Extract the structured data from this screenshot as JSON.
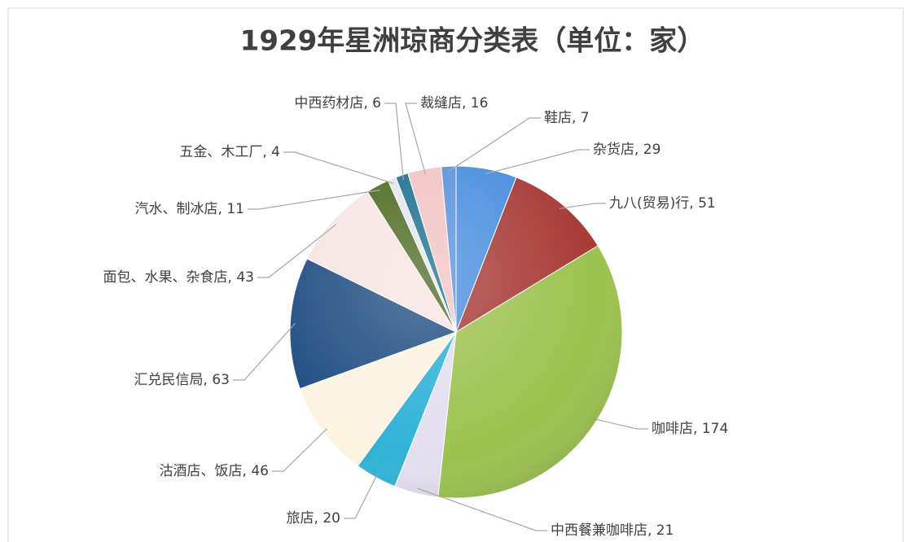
{
  "chart_data": {
    "type": "pie",
    "title": "1929年星洲琼商分类表（单位：家）",
    "categories": [
      "杂货店",
      "九八(贸易)行",
      "咖啡店",
      "中西餐兼咖啡店",
      "旅店",
      "沽酒店、饭店",
      "汇兑民信局",
      "面包、水果、杂食店",
      "汽水、制冰店",
      "五金、木工厂",
      "中西药材店",
      "裁缝店",
      "鞋店"
    ],
    "values": [
      29,
      51,
      174,
      21,
      20,
      46,
      63,
      43,
      11,
      4,
      6,
      16,
      7
    ],
    "value_labels": [
      "杂货店, 29",
      "九八(贸易)行, 51",
      "咖啡店, 174",
      "中西餐兼咖啡店, 21",
      "旅店, 20",
      "沽酒店、饭店, 46",
      "汇兑民信局, 63",
      "面包、水果、杂食店, 43",
      "汽水、制冰店, 11",
      "五金、木工厂, 4",
      "中西药材店, 6",
      "裁缝店, 16",
      "鞋店, 7"
    ],
    "colors": [
      "#4a8ede",
      "#a73b38",
      "#9cc24f",
      "#e4dff0",
      "#2fb2d6",
      "#fcf3e1",
      "#1f4d82",
      "#f7e4e4",
      "#4d6a22",
      "#e3e6ef",
      "#1d6f8e",
      "#f1c3c3",
      "#5b92db"
    ]
  }
}
